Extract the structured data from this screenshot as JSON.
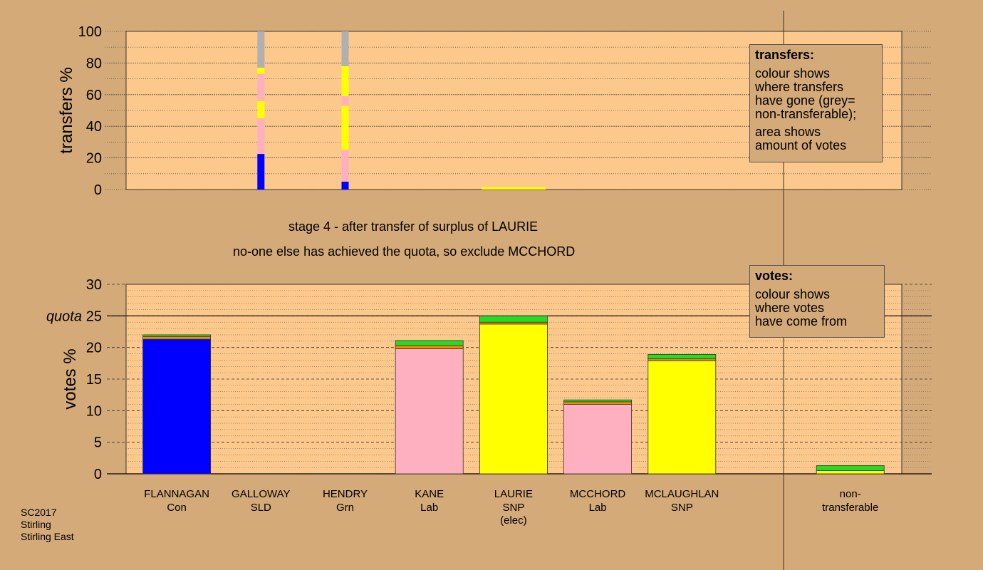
{
  "stage": {
    "line1": "stage 4 - after transfer of surplus of LAURIE",
    "line2": "no-one else has achieved the quota, so exclude MCCHORD"
  },
  "legend_transfers": {
    "title": "transfers:",
    "line1": "colour shows",
    "line2": "where transfers",
    "line3": "have gone (grey=",
    "line4": "non-transferable);",
    "line5": "area shows",
    "line6": "amount of votes"
  },
  "legend_votes": {
    "title": "votes:",
    "line1": "colour shows",
    "line2": "where votes",
    "line3": "have come from"
  },
  "footer": {
    "line1": "SC2017",
    "line2": "Stirling",
    "line3": "Stirling East"
  },
  "colors": {
    "background": "#d4aa78",
    "plot_bg": "#fdc88c",
    "con": "#0000ff",
    "lab": "#ffb0c0",
    "snp": "#ffff00",
    "grn": "#22dd22",
    "sld": "#ff8800",
    "nontransferable": "#b0b0b0"
  },
  "chart_data": [
    {
      "type": "bar",
      "ylabel": "transfers %",
      "ylim": [
        0,
        100
      ],
      "yticks": [
        0,
        20,
        40,
        60,
        80,
        100
      ],
      "categories": [
        "FLANNAGAN",
        "GALLOWAY",
        "HENDRY",
        "KANE",
        "LAURIE",
        "MCCHORD",
        "MCLAUGHLAN"
      ],
      "transfer_stacks": [
        {
          "candidate": "GALLOWAY",
          "segments": [
            {
              "color": "con",
              "value": 22.5
            },
            {
              "color": "lab",
              "value": 22.5
            },
            {
              "color": "snp",
              "value": 11
            },
            {
              "color": "lab",
              "value": 17
            },
            {
              "color": "snp",
              "value": 4
            },
            {
              "color": "nontransferable",
              "value": 23
            }
          ]
        },
        {
          "candidate": "HENDRY",
          "segments": [
            {
              "color": "con",
              "value": 5
            },
            {
              "color": "lab",
              "value": 20
            },
            {
              "color": "snp",
              "value": 28
            },
            {
              "color": "lab",
              "value": 6
            },
            {
              "color": "snp",
              "value": 19
            },
            {
              "color": "nontransferable",
              "value": 22
            }
          ]
        },
        {
          "candidate": "LAURIE",
          "segments": [
            {
              "color": "snp",
              "value": 1.5
            }
          ]
        }
      ]
    },
    {
      "type": "bar",
      "ylabel": "votes %",
      "ylim": [
        0,
        30
      ],
      "yticks": [
        0,
        5,
        10,
        15,
        20,
        25,
        30
      ],
      "quota": 25,
      "quota_label": "quota",
      "candidates": [
        {
          "name": "FLANNAGAN",
          "party": "Con",
          "extra": "",
          "segments": [
            {
              "color": "con",
              "value": 21.3
            },
            {
              "color": "sld",
              "value": 0.4
            },
            {
              "color": "grn",
              "value": 0.3
            }
          ]
        },
        {
          "name": "GALLOWAY",
          "party": "SLD",
          "extra": "",
          "segments": []
        },
        {
          "name": "HENDRY",
          "party": "Grn",
          "extra": "",
          "segments": []
        },
        {
          "name": "KANE",
          "party": "Lab",
          "extra": "",
          "segments": [
            {
              "color": "lab",
              "value": 19.8
            },
            {
              "color": "sld",
              "value": 0.5
            },
            {
              "color": "grn",
              "value": 0.8
            }
          ]
        },
        {
          "name": "LAURIE",
          "party": "SNP",
          "extra": "(elec)",
          "segments": [
            {
              "color": "snp",
              "value": 23.7
            },
            {
              "color": "sld",
              "value": 0.3
            },
            {
              "color": "grn",
              "value": 1.0
            }
          ]
        },
        {
          "name": "MCCHORD",
          "party": "Lab",
          "extra": "",
          "segments": [
            {
              "color": "lab",
              "value": 11.0
            },
            {
              "color": "sld",
              "value": 0.4
            },
            {
              "color": "grn",
              "value": 0.3
            }
          ]
        },
        {
          "name": "MCLAUGHLAN",
          "party": "SNP",
          "extra": "",
          "segments": [
            {
              "color": "snp",
              "value": 17.9
            },
            {
              "color": "sld",
              "value": 0.3
            },
            {
              "color": "grn",
              "value": 0.7
            }
          ]
        },
        {
          "name": "non-",
          "party": "transferable",
          "extra": "",
          "segments": [
            {
              "color": "snp",
              "value": 0.5
            },
            {
              "color": "grn",
              "value": 0.8
            }
          ]
        }
      ]
    }
  ]
}
